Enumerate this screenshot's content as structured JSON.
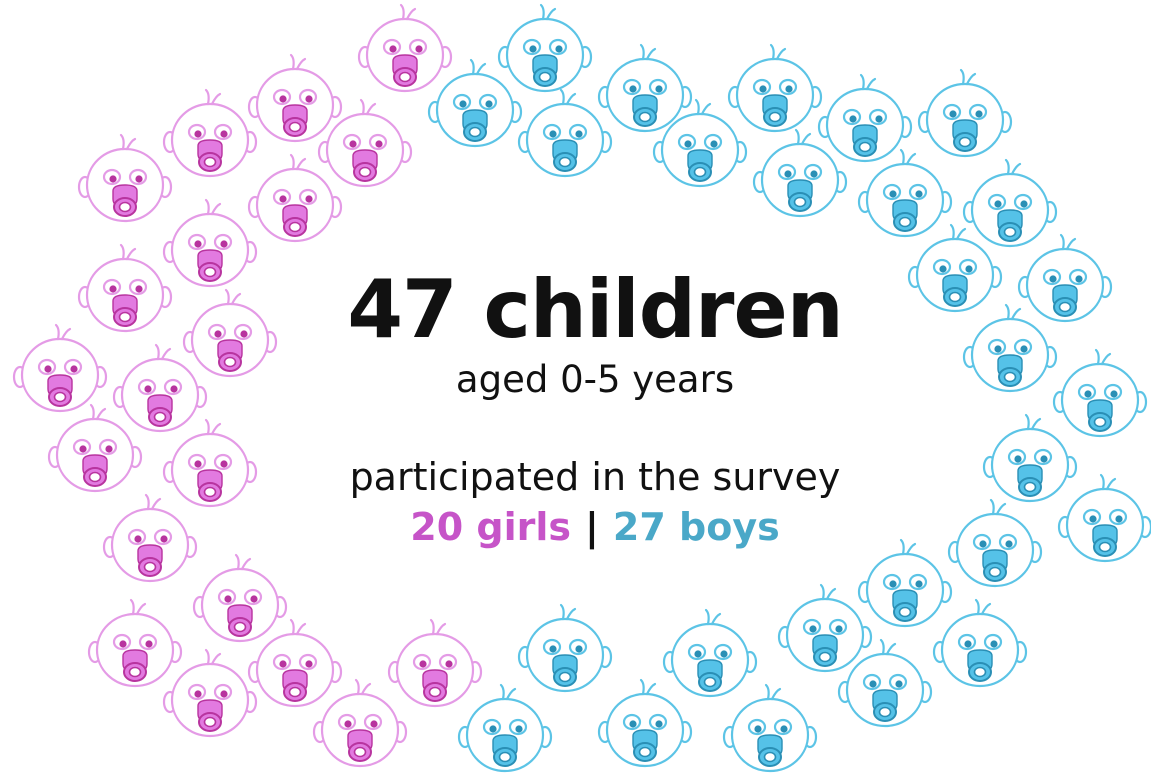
{
  "headline": "47 children",
  "subheadline": "aged 0-5 years",
  "participated": "participated in the survey",
  "girls_label": "20 girls",
  "separator": "|",
  "boys_label": "27 boys",
  "icon": "baby-face-icon",
  "colors": {
    "girl_stroke": "#e49be6",
    "girl_fill": "#e27ae0",
    "girl_accent": "#b8349f",
    "boy_stroke": "#5cc4e6",
    "boy_fill": "#55c2e8",
    "boy_accent": "#2a8fb5",
    "text": "#111111"
  }
}
